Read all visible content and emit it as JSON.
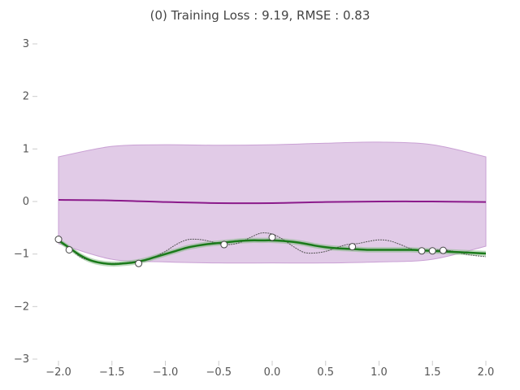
{
  "chart_data": {
    "type": "line",
    "title": "(0) Training Loss : 9.19, RMSE : 0.83",
    "xlabel": "",
    "ylabel": "",
    "xlim": [
      -2.0,
      2.0
    ],
    "ylim": [
      -3,
      3
    ],
    "xticks": [
      "−2.0",
      "−1.5",
      "−1.0",
      "−0.5",
      "0.0",
      "0.5",
      "1.0",
      "1.5",
      "2.0"
    ],
    "yticks": [
      "−3",
      "−2",
      "−1",
      "0",
      "1",
      "2",
      "3"
    ],
    "grid": false,
    "colors": {
      "prior_band": "#c9a0d4",
      "prior_mean": "#8b1a8b",
      "true_function": "#555555",
      "fit_line": "#1a7a1a",
      "fit_band": "#7fb87f",
      "points": "#ffffff"
    },
    "series": [
      {
        "kind": "band",
        "x": [
          -2.0,
          -1.5,
          -1.0,
          -0.5,
          0.0,
          0.5,
          1.0,
          1.5,
          2.0
        ],
        "upper": [
          0.85,
          1.05,
          1.08,
          1.07,
          1.08,
          1.11,
          1.13,
          1.08,
          0.85
        ],
        "lower": [
          -0.8,
          -1.1,
          -1.15,
          -1.17,
          -1.17,
          -1.17,
          -1.15,
          -1.1,
          -0.85
        ]
      },
      {
        "kind": "mean",
        "x": [
          -2.0,
          -1.5,
          -1.0,
          -0.5,
          0.0,
          0.5,
          1.0,
          1.5,
          2.0
        ],
        "y": [
          0.03,
          0.02,
          -0.01,
          -0.03,
          -0.03,
          -0.01,
          0.0,
          0.0,
          -0.01
        ]
      },
      {
        "kind": "true",
        "x": [
          -2.0,
          -1.9,
          -1.8,
          -1.7,
          -1.6,
          -1.5,
          -1.4,
          -1.3,
          -1.2,
          -1.1,
          -1.0,
          -0.9,
          -0.8,
          -0.7,
          -0.6,
          -0.5,
          -0.4,
          -0.3,
          -0.2,
          -0.1,
          0.0,
          0.1,
          0.2,
          0.3,
          0.4,
          0.5,
          0.6,
          0.7,
          0.8,
          0.9,
          1.0,
          1.1,
          1.2,
          1.3,
          1.4,
          1.5,
          1.6,
          1.7,
          1.8,
          1.9,
          2.0
        ],
        "y": [
          -0.72,
          -0.88,
          -1.05,
          -1.13,
          -1.17,
          -1.18,
          -1.17,
          -1.15,
          -1.12,
          -1.05,
          -0.95,
          -0.82,
          -0.73,
          -0.72,
          -0.75,
          -0.8,
          -0.82,
          -0.78,
          -0.68,
          -0.6,
          -0.62,
          -0.72,
          -0.86,
          -0.97,
          -0.98,
          -0.95,
          -0.88,
          -0.82,
          -0.8,
          -0.76,
          -0.73,
          -0.75,
          -0.82,
          -0.9,
          -0.94,
          -0.93,
          -0.92,
          -0.95,
          -1.0,
          -1.03,
          -1.05
        ]
      },
      {
        "kind": "fit",
        "x": [
          -2.0,
          -1.9,
          -1.8,
          -1.7,
          -1.6,
          -1.5,
          -1.4,
          -1.3,
          -1.2,
          -1.1,
          -1.0,
          -0.9,
          -0.8,
          -0.7,
          -0.6,
          -0.5,
          -0.4,
          -0.3,
          -0.2,
          -0.1,
          0.0,
          0.1,
          0.2,
          0.3,
          0.4,
          0.5,
          0.6,
          0.7,
          0.8,
          0.9,
          1.0,
          1.1,
          1.2,
          1.3,
          1.4,
          1.5,
          1.6,
          1.7,
          1.8,
          1.9,
          2.0
        ],
        "y": [
          -0.74,
          -0.88,
          -1.02,
          -1.12,
          -1.17,
          -1.19,
          -1.18,
          -1.16,
          -1.12,
          -1.06,
          -1.0,
          -0.94,
          -0.88,
          -0.84,
          -0.81,
          -0.79,
          -0.77,
          -0.75,
          -0.74,
          -0.74,
          -0.74,
          -0.75,
          -0.77,
          -0.8,
          -0.84,
          -0.87,
          -0.89,
          -0.9,
          -0.91,
          -0.92,
          -0.92,
          -0.92,
          -0.92,
          -0.92,
          -0.93,
          -0.94,
          -0.95,
          -0.96,
          -0.97,
          -0.98,
          -0.99
        ],
        "band": 0.05
      },
      {
        "kind": "points",
        "x": [
          -2.0,
          -1.9,
          -1.25,
          -0.45,
          0.0,
          0.75,
          1.4,
          1.5,
          1.6
        ],
        "y": [
          -0.72,
          -0.92,
          -1.18,
          -0.82,
          -0.68,
          -0.86,
          -0.94,
          -0.94,
          -0.93
        ]
      }
    ]
  }
}
